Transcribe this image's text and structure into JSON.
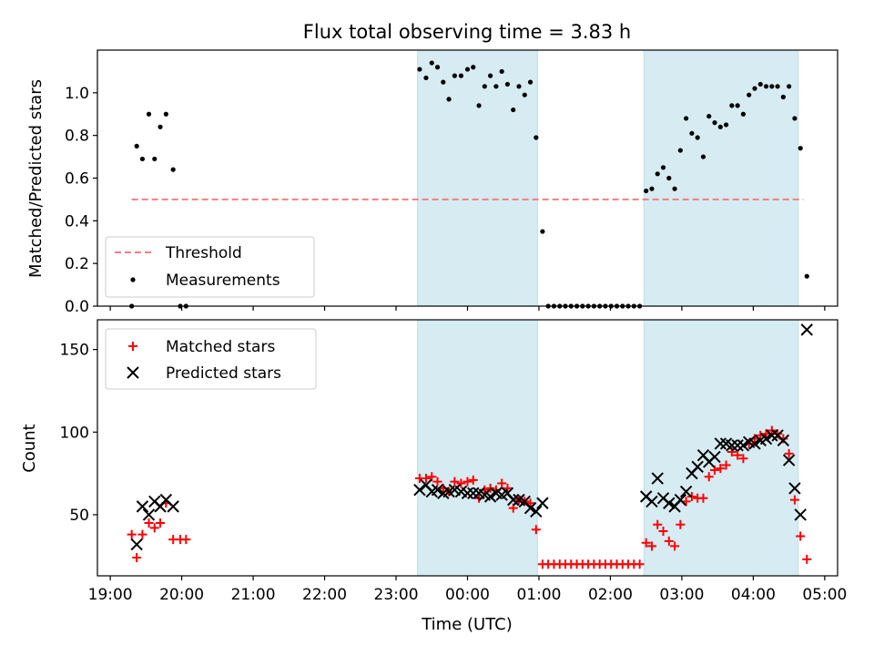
{
  "chart_data": [
    {
      "type": "scatter",
      "title": "Flux total observing time = 3.83 h",
      "xlabel": "",
      "ylabel": "Matched/Predicted stars",
      "ylim": [
        0,
        1.2
      ],
      "yticks": [
        "0.0",
        "0.2",
        "0.4",
        "0.6",
        "0.8",
        "1.0"
      ],
      "x_unit": "hours since 19:00 UTC",
      "shaded_intervals": [
        [
          4.3,
          5.98
        ],
        [
          7.47,
          9.63
        ]
      ],
      "threshold": {
        "name": "Threshold",
        "value": 0.5,
        "x_range": [
          0.3,
          9.7
        ],
        "color": "#f08080"
      },
      "legend": {
        "position": "lower-left",
        "entries": [
          "Threshold",
          "Measurements"
        ]
      },
      "series": [
        {
          "name": "Measurements",
          "color": "#000000",
          "points": [
            [
              0.3,
              0.0
            ],
            [
              0.37,
              0.75
            ],
            [
              0.45,
              0.69
            ],
            [
              0.54,
              0.9
            ],
            [
              0.62,
              0.69
            ],
            [
              0.7,
              0.84
            ],
            [
              0.78,
              0.9
            ],
            [
              0.88,
              0.64
            ],
            [
              0.98,
              0.0
            ],
            [
              1.06,
              0.0
            ],
            [
              4.33,
              1.11
            ],
            [
              4.42,
              1.07
            ],
            [
              4.5,
              1.14
            ],
            [
              4.58,
              1.12
            ],
            [
              4.66,
              1.05
            ],
            [
              4.74,
              0.97
            ],
            [
              4.82,
              1.08
            ],
            [
              4.91,
              1.08
            ],
            [
              5.0,
              1.11
            ],
            [
              5.08,
              1.12
            ],
            [
              5.16,
              0.94
            ],
            [
              5.24,
              1.03
            ],
            [
              5.32,
              1.08
            ],
            [
              5.4,
              1.03
            ],
            [
              5.48,
              1.1
            ],
            [
              5.56,
              1.04
            ],
            [
              5.64,
              0.92
            ],
            [
              5.72,
              1.03
            ],
            [
              5.8,
              0.99
            ],
            [
              5.88,
              1.05
            ],
            [
              5.96,
              0.79
            ],
            [
              6.05,
              0.35
            ],
            [
              6.13,
              0.0
            ],
            [
              6.21,
              0.0
            ],
            [
              6.29,
              0.0
            ],
            [
              6.37,
              0.0
            ],
            [
              6.45,
              0.0
            ],
            [
              6.53,
              0.0
            ],
            [
              6.61,
              0.0
            ],
            [
              6.69,
              0.0
            ],
            [
              6.77,
              0.0
            ],
            [
              6.85,
              0.0
            ],
            [
              6.93,
              0.0
            ],
            [
              7.01,
              0.0
            ],
            [
              7.09,
              0.0
            ],
            [
              7.17,
              0.0
            ],
            [
              7.25,
              0.0
            ],
            [
              7.33,
              0.0
            ],
            [
              7.41,
              0.0
            ],
            [
              7.5,
              0.54
            ],
            [
              7.58,
              0.55
            ],
            [
              7.66,
              0.62
            ],
            [
              7.74,
              0.65
            ],
            [
              7.82,
              0.6
            ],
            [
              7.9,
              0.55
            ],
            [
              7.98,
              0.73
            ],
            [
              8.06,
              0.88
            ],
            [
              8.14,
              0.81
            ],
            [
              8.22,
              0.79
            ],
            [
              8.3,
              0.7
            ],
            [
              8.38,
              0.89
            ],
            [
              8.46,
              0.86
            ],
            [
              8.54,
              0.84
            ],
            [
              8.62,
              0.85
            ],
            [
              8.7,
              0.94
            ],
            [
              8.78,
              0.94
            ],
            [
              8.86,
              0.9
            ],
            [
              8.94,
              0.99
            ],
            [
              9.02,
              1.02
            ],
            [
              9.1,
              1.04
            ],
            [
              9.18,
              1.03
            ],
            [
              9.26,
              1.03
            ],
            [
              9.34,
              1.03
            ],
            [
              9.42,
              0.98
            ],
            [
              9.5,
              1.03
            ],
            [
              9.58,
              0.88
            ],
            [
              9.66,
              0.74
            ],
            [
              9.75,
              0.14
            ]
          ]
        }
      ]
    },
    {
      "type": "scatter",
      "title": "",
      "xlabel": "Time (UTC)",
      "ylabel": "Count",
      "ylim": [
        13,
        168
      ],
      "yticks": [
        "50",
        "100",
        "150"
      ],
      "x_unit": "hours since 19:00 UTC",
      "xlim": [
        -0.18,
        10.18
      ],
      "xticks": [
        "19:00",
        "20:00",
        "21:00",
        "22:00",
        "23:00",
        "00:00",
        "01:00",
        "02:00",
        "03:00",
        "04:00",
        "05:00"
      ],
      "shaded_intervals": [
        [
          4.3,
          5.98
        ],
        [
          7.47,
          9.63
        ]
      ],
      "legend": {
        "position": "top-left",
        "entries": [
          "Matched stars",
          "Predicted stars"
        ]
      },
      "series": [
        {
          "name": "Matched stars",
          "marker": "+",
          "color": "#ff0000",
          "points": [
            [
              0.3,
              38
            ],
            [
              0.37,
              24
            ],
            [
              0.45,
              38
            ],
            [
              0.54,
              45
            ],
            [
              0.62,
              42
            ],
            [
              0.7,
              45
            ],
            [
              0.78,
              57
            ],
            [
              0.88,
              35
            ],
            [
              0.98,
              35
            ],
            [
              1.06,
              35
            ],
            [
              4.33,
              72
            ],
            [
              4.42,
              72
            ],
            [
              4.5,
              73
            ],
            [
              4.58,
              70
            ],
            [
              4.66,
              66
            ],
            [
              4.74,
              64
            ],
            [
              4.82,
              70
            ],
            [
              4.91,
              69
            ],
            [
              5.0,
              70
            ],
            [
              5.08,
              71
            ],
            [
              5.16,
              60
            ],
            [
              5.24,
              65
            ],
            [
              5.32,
              66
            ],
            [
              5.4,
              65
            ],
            [
              5.48,
              69
            ],
            [
              5.56,
              66
            ],
            [
              5.64,
              54
            ],
            [
              5.72,
              59
            ],
            [
              5.8,
              58
            ],
            [
              5.88,
              57
            ],
            [
              5.96,
              41
            ],
            [
              6.05,
              20
            ],
            [
              6.13,
              20
            ],
            [
              6.21,
              20
            ],
            [
              6.29,
              20
            ],
            [
              6.37,
              20
            ],
            [
              6.45,
              20
            ],
            [
              6.53,
              20
            ],
            [
              6.61,
              20
            ],
            [
              6.69,
              20
            ],
            [
              6.77,
              20
            ],
            [
              6.85,
              20
            ],
            [
              6.93,
              20
            ],
            [
              7.01,
              20
            ],
            [
              7.09,
              20
            ],
            [
              7.17,
              20
            ],
            [
              7.25,
              20
            ],
            [
              7.33,
              20
            ],
            [
              7.41,
              20
            ],
            [
              7.5,
              33
            ],
            [
              7.58,
              31
            ],
            [
              7.66,
              44
            ],
            [
              7.74,
              40
            ],
            [
              7.82,
              34
            ],
            [
              7.9,
              31
            ],
            [
              7.98,
              44
            ],
            [
              8.06,
              58
            ],
            [
              8.14,
              61
            ],
            [
              8.22,
              60
            ],
            [
              8.3,
              60
            ],
            [
              8.38,
              73
            ],
            [
              8.46,
              77
            ],
            [
              8.54,
              78
            ],
            [
              8.62,
              80
            ],
            [
              8.7,
              88
            ],
            [
              8.78,
              86
            ],
            [
              8.86,
              84
            ],
            [
              8.94,
              93
            ],
            [
              9.02,
              96
            ],
            [
              9.1,
              98
            ],
            [
              9.18,
              99
            ],
            [
              9.26,
              101
            ],
            [
              9.34,
              99
            ],
            [
              9.42,
              96
            ],
            [
              9.5,
              87
            ],
            [
              9.58,
              59
            ],
            [
              9.66,
              37
            ],
            [
              9.75,
              23
            ]
          ]
        },
        {
          "name": "Predicted stars",
          "marker": "x",
          "color": "#000000",
          "points": [
            [
              0.37,
              32
            ],
            [
              0.45,
              55
            ],
            [
              0.54,
              50
            ],
            [
              0.62,
              58
            ],
            [
              0.7,
              55
            ],
            [
              0.78,
              59
            ],
            [
              0.88,
              55
            ],
            [
              4.33,
              65
            ],
            [
              4.42,
              68
            ],
            [
              4.5,
              64
            ],
            [
              4.58,
              65
            ],
            [
              4.66,
              63
            ],
            [
              4.74,
              64
            ],
            [
              4.82,
              65
            ],
            [
              4.91,
              64
            ],
            [
              5.0,
              63
            ],
            [
              5.08,
              63
            ],
            [
              5.16,
              63
            ],
            [
              5.24,
              62
            ],
            [
              5.32,
              61
            ],
            [
              5.4,
              63
            ],
            [
              5.48,
              62
            ],
            [
              5.56,
              63
            ],
            [
              5.64,
              59
            ],
            [
              5.72,
              59
            ],
            [
              5.8,
              58
            ],
            [
              5.88,
              54
            ],
            [
              5.96,
              52
            ],
            [
              6.05,
              57
            ],
            [
              7.5,
              61
            ],
            [
              7.58,
              58
            ],
            [
              7.66,
              72
            ],
            [
              7.74,
              60
            ],
            [
              7.82,
              57
            ],
            [
              7.9,
              55
            ],
            [
              7.98,
              59
            ],
            [
              8.06,
              64
            ],
            [
              8.14,
              75
            ],
            [
              8.22,
              79
            ],
            [
              8.3,
              86
            ],
            [
              8.38,
              82
            ],
            [
              8.46,
              85
            ],
            [
              8.54,
              93
            ],
            [
              8.62,
              93
            ],
            [
              8.7,
              92
            ],
            [
              8.78,
              92
            ],
            [
              8.86,
              92
            ],
            [
              8.94,
              94
            ],
            [
              9.02,
              93
            ],
            [
              9.1,
              95
            ],
            [
              9.18,
              96
            ],
            [
              9.26,
              98
            ],
            [
              9.34,
              98
            ],
            [
              9.42,
              95
            ],
            [
              9.5,
              83
            ],
            [
              9.58,
              66
            ],
            [
              9.66,
              50
            ],
            [
              9.75,
              162
            ]
          ]
        }
      ]
    }
  ]
}
